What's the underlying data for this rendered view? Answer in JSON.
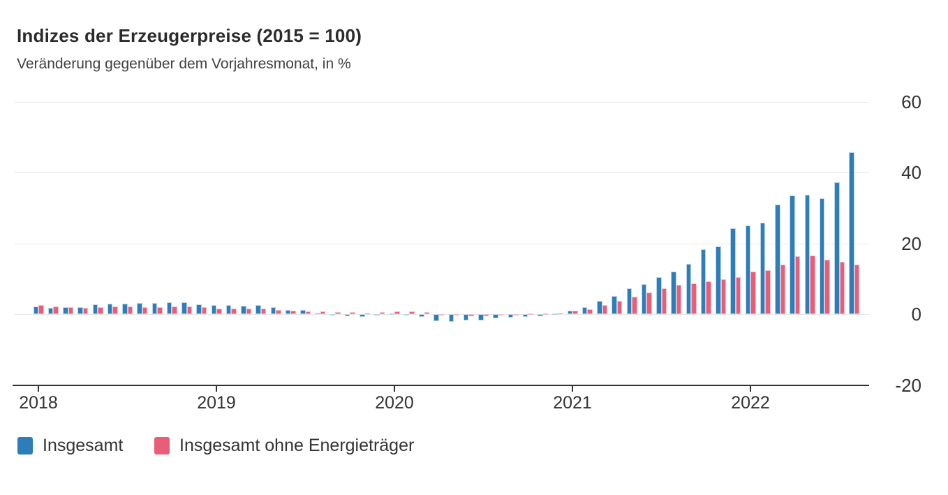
{
  "chart_data": {
    "type": "bar",
    "title": "Indizes der Erzeugerpreise (2015 = 100)",
    "subtitle": "Veränderung gegenüber dem Vorjahresmonat, in %",
    "x_unit": "month",
    "x_start": "2018-01",
    "x_end": "2022-08",
    "n_months": 56,
    "x_tick_labels": [
      "2018",
      "2019",
      "2020",
      "2021",
      "2022"
    ],
    "y_ticks": [
      60,
      40,
      20,
      0,
      -20
    ],
    "ylim": [
      -20,
      60
    ],
    "grid": "horizontal",
    "legend_position": "bottom-left",
    "axis_color": "#333333",
    "grid_color": "#e7e7e7",
    "series": [
      {
        "name": "Insgesamt",
        "color": "#2d7db9",
        "stroke": "#b9d4ea",
        "values": [
          2.1,
          1.8,
          1.9,
          2.0,
          2.7,
          3.0,
          3.0,
          3.1,
          3.2,
          3.3,
          3.3,
          2.7,
          2.6,
          2.6,
          2.4,
          2.5,
          1.9,
          1.2,
          1.1,
          0.3,
          -0.1,
          -0.6,
          -0.7,
          -0.2,
          0.2,
          -0.1,
          -0.8,
          -1.9,
          -2.2,
          -1.8,
          -1.7,
          -1.2,
          -1.0,
          -0.7,
          -0.5,
          0.2,
          0.9,
          1.9,
          3.7,
          5.2,
          7.2,
          8.5,
          10.4,
          12.0,
          14.2,
          18.4,
          19.2,
          24.2,
          25.0,
          25.9,
          30.9,
          33.5,
          33.6,
          32.7,
          37.2,
          45.8
        ]
      },
      {
        "name": "Insgesamt ohne Energieträger",
        "color": "#ea5d76",
        "stroke": "#f6bcc8",
        "values": [
          2.6,
          2.1,
          1.9,
          1.8,
          2.0,
          2.1,
          2.1,
          2.0,
          2.0,
          2.2,
          2.1,
          2.0,
          1.5,
          1.6,
          1.5,
          1.6,
          1.2,
          1.0,
          0.8,
          0.7,
          0.6,
          0.5,
          0.4,
          0.5,
          0.8,
          0.8,
          0.5,
          -0.2,
          -0.3,
          -0.5,
          -0.5,
          -0.4,
          -0.1,
          0.2,
          0.2,
          0.4,
          0.9,
          1.4,
          2.5,
          3.7,
          5.0,
          6.2,
          7.2,
          8.3,
          8.6,
          9.2,
          9.9,
          10.4,
          12.0,
          12.4,
          14.0,
          16.3,
          16.5,
          15.4,
          14.7,
          14.0
        ]
      }
    ]
  }
}
